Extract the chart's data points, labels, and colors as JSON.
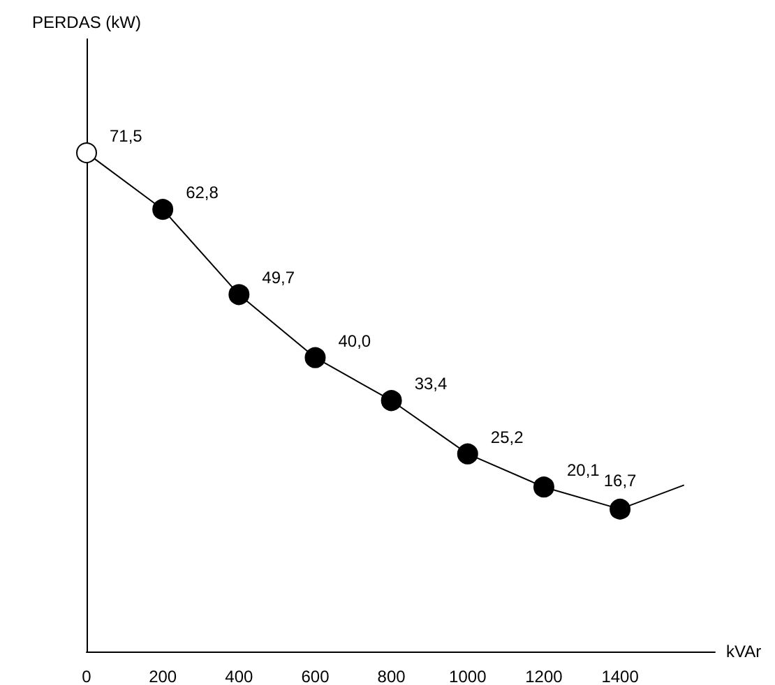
{
  "chart_data": {
    "type": "line",
    "ylabel": "PERDAS (kW)",
    "xlabel": "kVAr",
    "xlim": [
      0,
      1649
    ],
    "xticks": [
      0,
      200,
      400,
      600,
      800,
      1000,
      1200,
      1400
    ],
    "ylim": [
      -5.2,
      89
    ],
    "tick_labels": "x",
    "grid": false,
    "series": [
      {
        "color": "#000000",
        "marker": "circle",
        "colors": [
          "#ffffff",
          "#000000",
          "#000000",
          "#000000",
          "#000000",
          "#000000",
          "#000000",
          "#000000"
        ],
        "x": [
          0,
          200,
          400,
          600,
          800,
          1000,
          1200,
          1400
        ],
        "values": [
          71.5,
          62.8,
          49.7,
          40.0,
          33.4,
          25.2,
          20.1,
          16.7
        ],
        "value_labels": [
          "71,5",
          "62,8",
          "49,7",
          "40,0",
          "33,4",
          "25,2",
          "20,1",
          "16,7"
        ]
      },
      {
        "color": "#000000",
        "marker": "none",
        "x": [
          1400,
          1568
        ],
        "values": [
          16.7,
          20.4
        ]
      }
    ]
  }
}
